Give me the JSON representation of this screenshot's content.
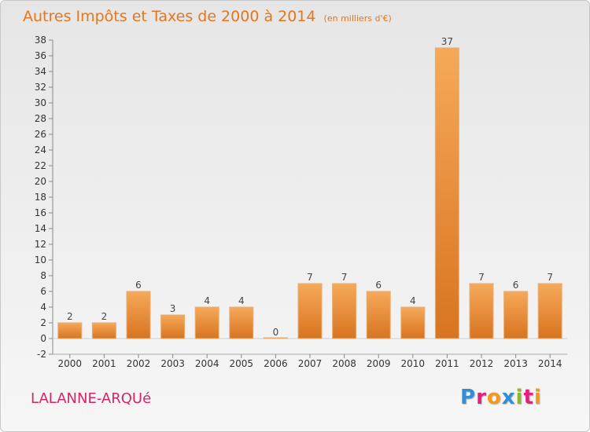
{
  "title": "Autres Impôts et Taxes de 2000 à 2014",
  "subtitle": "(en milliers d'€)",
  "location": "LALANNE-ARQUé",
  "logo": {
    "letters": [
      "P",
      "r",
      "o",
      "x",
      "i",
      "t",
      "i"
    ]
  },
  "colors": {
    "title": "#e5761b",
    "location": "#d4256b",
    "bar_light": "#f6a95a",
    "bar_dark": "#d8741f"
  },
  "chart_data": {
    "type": "bar",
    "categories": [
      "2000",
      "2001",
      "2002",
      "2003",
      "2004",
      "2005",
      "2006",
      "2007",
      "2008",
      "2009",
      "2010",
      "2011",
      "2012",
      "2013",
      "2014"
    ],
    "values": [
      2,
      2,
      6,
      3,
      4,
      4,
      0,
      7,
      7,
      6,
      4,
      37,
      7,
      6,
      7
    ],
    "ylim": [
      -2,
      38
    ],
    "yticks": [
      -2,
      0,
      2,
      4,
      6,
      8,
      10,
      12,
      14,
      16,
      18,
      20,
      22,
      24,
      26,
      28,
      30,
      32,
      34,
      36,
      38
    ],
    "grid": false,
    "data_labels": true
  }
}
